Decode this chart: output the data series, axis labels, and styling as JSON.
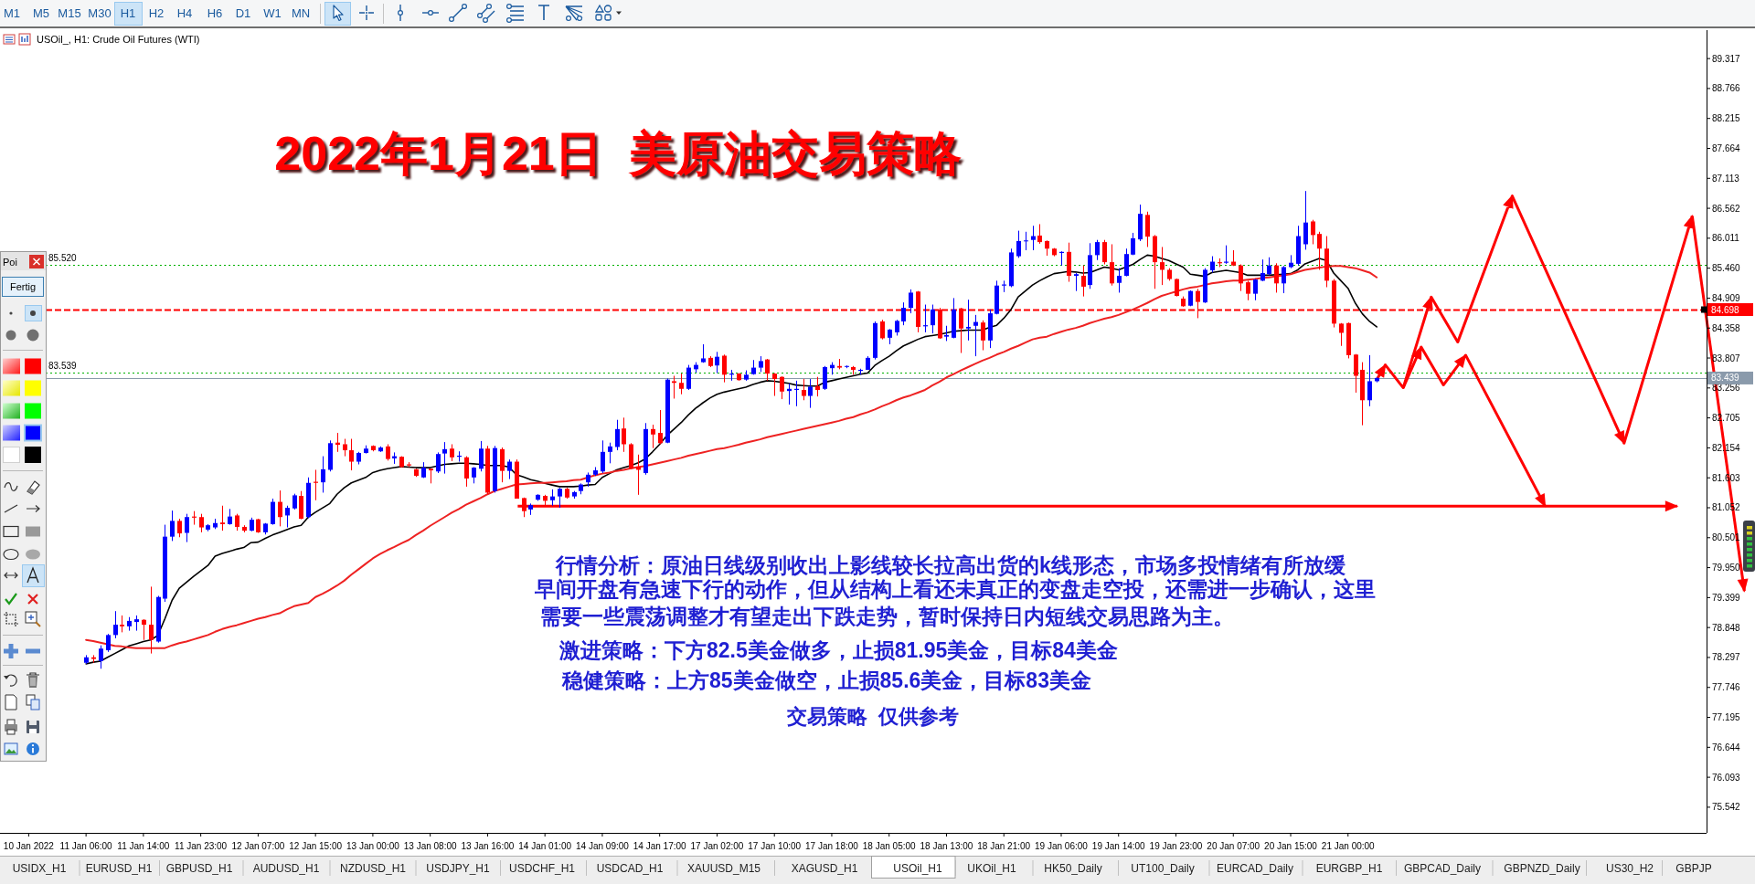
{
  "chart_data": [
    {
      "type": "candlestick",
      "title": "2022年1月21日  美原油交易策略",
      "subtitle": "USOil_, H1: Crude Oil Futures (WTI)",
      "ylim": [
        75.07,
        89.84
      ],
      "yticks": [
        89.317,
        88.766,
        88.215,
        87.664,
        87.113,
        86.562,
        86.011,
        {
          "value": 85.46,
          "label": "85.460"
        },
        84.909,
        84.358,
        83.807,
        83.256,
        82.705,
        82.154,
        81.603,
        81.052,
        80.501,
        {
          "value": 79.95,
          "label": "79.950"
        },
        79.399,
        78.848,
        78.297,
        77.746,
        77.195,
        76.644,
        76.093,
        75.542
      ],
      "categories": [
        "10 Jan 2022",
        null,
        null,
        null,
        null,
        null,
        null,
        null,
        "11 Jan 06:00",
        null,
        null,
        null,
        null,
        null,
        null,
        null,
        "11 Jan 14:00",
        null,
        null,
        null,
        null,
        null,
        null,
        null,
        "11 Jan 23:00",
        null,
        null,
        null,
        null,
        null,
        null,
        null,
        "12 Jan 07:00",
        null,
        null,
        null,
        null,
        null,
        null,
        null,
        "12 Jan 15:00",
        null,
        null,
        null,
        null,
        null,
        null,
        null,
        "13 Jan 00:00",
        null,
        null,
        null,
        null,
        null,
        null,
        null,
        "13 Jan 08:00",
        null,
        null,
        null,
        null,
        null,
        null,
        null,
        "13 Jan 16:00",
        null,
        null,
        null,
        null,
        null,
        null,
        null,
        "14 Jan 01:00",
        null,
        null,
        null,
        null,
        null,
        null,
        null,
        "14 Jan 09:00",
        null,
        null,
        null,
        null,
        null,
        null,
        null,
        "14 Jan 17:00",
        null,
        null,
        null,
        null,
        null,
        null,
        null,
        "17 Jan 02:00",
        null,
        null,
        null,
        null,
        null,
        null,
        null,
        "17 Jan 10:00",
        null,
        null,
        null,
        null,
        null,
        null,
        null,
        "17 Jan 18:00",
        null,
        null,
        null,
        null,
        null,
        null,
        null,
        "18 Jan 05:00",
        null,
        null,
        null,
        null,
        null,
        null,
        null,
        "18 Jan 13:00",
        null,
        null,
        null,
        null,
        null,
        null,
        null,
        "18 Jan 21:00",
        null,
        null,
        null,
        null,
        null,
        null,
        null,
        "19 Jan 06:00",
        null,
        null,
        null,
        null,
        null,
        null,
        null,
        "19 Jan 14:00",
        null,
        null,
        null,
        null,
        null,
        null,
        null,
        "19 Jan 23:00",
        null,
        null,
        null,
        null,
        null,
        null,
        null,
        "20 Jan 07:00",
        null,
        null,
        null,
        null,
        null,
        null,
        null,
        "20 Jan 15:00",
        null,
        null,
        null,
        null,
        null,
        null,
        null,
        "21 Jan 00:00",
        null,
        null,
        null,
        null,
        null,
        null,
        null,
        null,
        null,
        null,
        null,
        null,
        null,
        null,
        null,
        null,
        null,
        null,
        null,
        null,
        null,
        null,
        null,
        null,
        null,
        null,
        null,
        null,
        null,
        null,
        null,
        null,
        null,
        null,
        null,
        null,
        null,
        null,
        null,
        null,
        null,
        null,
        null,
        null,
        null,
        null,
        null,
        null,
        null
      ],
      "ohlc": [
        null,
        null,
        null,
        null,
        null,
        null,
        null,
        null,
        [
          78.2,
          78.34,
          78.18,
          78.3
        ],
        [
          78.3,
          78.34,
          78.2,
          78.27
        ],
        [
          78.23,
          78.52,
          78.09,
          78.46
        ],
        [
          78.43,
          78.73,
          78.4,
          78.71
        ],
        [
          78.71,
          79.15,
          78.65,
          78.9
        ],
        [
          78.9,
          79.07,
          78.76,
          78.87
        ],
        [
          78.87,
          79.04,
          78.79,
          78.97
        ],
        [
          78.95,
          79.07,
          78.79,
          79.0
        ],
        [
          78.99,
          79.0,
          78.62,
          78.9
        ],
        [
          78.9,
          79.6,
          78.37,
          78.62
        ],
        [
          78.59,
          79.43,
          78.57,
          79.41
        ],
        [
          79.38,
          80.74,
          79.32,
          80.52
        ],
        [
          80.52,
          81.0,
          80.44,
          80.81
        ],
        [
          80.81,
          80.85,
          80.51,
          80.58
        ],
        [
          80.59,
          80.94,
          80.42,
          80.88
        ],
        [
          80.89,
          80.99,
          80.74,
          80.87
        ],
        [
          80.88,
          80.94,
          80.6,
          80.69
        ],
        [
          80.65,
          80.75,
          80.62,
          80.73
        ],
        [
          80.69,
          80.85,
          80.66,
          80.77
        ],
        [
          80.78,
          81.09,
          80.63,
          80.75
        ],
        [
          80.75,
          81.03,
          80.74,
          80.89
        ],
        [
          80.91,
          80.94,
          80.63,
          80.7
        ],
        [
          80.7,
          80.73,
          80.6,
          80.63
        ],
        [
          80.63,
          80.87,
          80.62,
          80.83
        ],
        [
          80.84,
          80.85,
          80.59,
          80.6
        ],
        [
          80.6,
          80.77,
          80.56,
          80.76
        ],
        [
          80.75,
          81.22,
          80.74,
          81.16
        ],
        [
          81.16,
          81.37,
          80.71,
          80.88
        ],
        [
          80.91,
          81.09,
          80.69,
          81.05
        ],
        [
          81.04,
          81.31,
          81.02,
          81.28
        ],
        [
          81.27,
          81.36,
          80.84,
          80.85
        ],
        [
          80.88,
          81.61,
          80.86,
          81.51
        ],
        [
          81.53,
          81.75,
          81.19,
          81.51
        ],
        [
          81.52,
          82.0,
          81.33,
          81.76
        ],
        [
          81.75,
          82.29,
          81.72,
          82.24
        ],
        [
          82.25,
          82.43,
          82.08,
          82.21
        ],
        [
          82.22,
          82.32,
          82.0,
          82.11
        ],
        [
          82.11,
          82.32,
          81.74,
          81.9
        ],
        [
          81.9,
          82.08,
          81.85,
          82.06
        ],
        [
          82.06,
          82.2,
          82.05,
          82.14
        ],
        [
          82.19,
          82.2,
          82.09,
          82.11
        ],
        [
          82.09,
          82.18,
          82.08,
          82.16
        ],
        [
          82.18,
          82.22,
          81.92,
          81.95
        ],
        [
          81.96,
          82.07,
          81.86,
          82.0
        ],
        [
          81.99,
          82.0,
          81.79,
          81.8
        ],
        [
          81.85,
          81.89,
          81.8,
          81.83
        ],
        [
          81.76,
          81.77,
          81.62,
          81.64
        ],
        [
          81.61,
          81.89,
          81.6,
          81.79
        ],
        [
          81.77,
          81.77,
          81.5,
          81.74
        ],
        [
          81.72,
          82.07,
          81.69,
          82.04
        ],
        [
          82.05,
          82.26,
          81.68,
          82.13
        ],
        [
          82.14,
          82.22,
          81.91,
          81.98
        ],
        [
          81.99,
          82.09,
          81.9,
          82.01
        ],
        [
          81.98,
          82.0,
          81.44,
          81.59
        ],
        [
          81.61,
          81.8,
          81.5,
          81.79
        ],
        [
          81.77,
          82.28,
          81.72,
          82.14
        ],
        [
          82.14,
          82.19,
          81.3,
          81.33
        ],
        [
          81.36,
          82.19,
          81.33,
          82.15
        ],
        [
          82.13,
          82.16,
          81.52,
          81.73
        ],
        [
          81.73,
          81.94,
          81.58,
          81.9
        ],
        [
          81.9,
          81.94,
          81.22,
          81.22
        ],
        [
          81.23,
          81.24,
          80.88,
          80.99
        ],
        [
          81.02,
          81.13,
          80.92,
          81.1
        ],
        [
          81.2,
          81.3,
          81.18,
          81.29
        ],
        [
          81.27,
          81.29,
          81.1,
          81.18
        ],
        [
          81.19,
          81.39,
          81.09,
          81.26
        ],
        [
          81.26,
          81.42,
          81.05,
          81.4
        ],
        [
          81.4,
          81.42,
          81.22,
          81.24
        ],
        [
          81.26,
          81.36,
          81.22,
          81.34
        ],
        [
          81.36,
          81.5,
          81.3,
          81.48
        ],
        [
          81.52,
          81.7,
          81.44,
          81.66
        ],
        [
          81.66,
          81.8,
          81.64,
          81.74
        ],
        [
          81.72,
          82.29,
          81.69,
          82.08
        ],
        [
          82.08,
          82.25,
          81.87,
          82.18
        ],
        [
          82.17,
          82.67,
          82.11,
          82.5
        ],
        [
          82.51,
          82.71,
          82.08,
          82.22
        ],
        [
          82.22,
          82.24,
          81.76,
          81.77
        ],
        [
          81.81,
          82.03,
          81.29,
          81.75
        ],
        [
          81.69,
          82.61,
          81.66,
          82.5
        ],
        [
          82.5,
          82.58,
          82.15,
          82.4
        ],
        [
          82.43,
          82.85,
          82.22,
          82.24
        ],
        [
          82.25,
          83.43,
          82.24,
          83.41
        ],
        [
          83.38,
          83.48,
          83.06,
          83.35
        ],
        [
          83.35,
          83.52,
          83.14,
          83.24
        ],
        [
          83.24,
          83.68,
          83.22,
          83.63
        ],
        [
          83.6,
          83.73,
          83.54,
          83.68
        ],
        [
          83.73,
          84.06,
          83.72,
          83.8
        ],
        [
          83.81,
          83.84,
          83.64,
          83.66
        ],
        [
          83.67,
          83.92,
          83.53,
          83.83
        ],
        [
          83.85,
          83.87,
          83.36,
          83.5
        ],
        [
          83.5,
          83.59,
          83.39,
          83.52
        ],
        [
          83.52,
          83.53,
          83.39,
          83.4
        ],
        [
          83.41,
          83.58,
          83.39,
          83.5
        ],
        [
          83.51,
          83.77,
          83.5,
          83.63
        ],
        [
          83.63,
          83.84,
          83.55,
          83.75
        ],
        [
          83.78,
          83.79,
          83.39,
          83.52
        ],
        [
          83.52,
          83.53,
          83.11,
          83.42
        ],
        [
          83.46,
          83.47,
          83.05,
          83.19
        ],
        [
          83.2,
          83.34,
          82.95,
          83.24
        ],
        [
          83.22,
          83.39,
          82.92,
          83.24
        ],
        [
          83.22,
          83.42,
          83.03,
          83.11
        ],
        [
          83.11,
          83.42,
          82.89,
          83.28
        ],
        [
          83.29,
          83.46,
          83.1,
          83.22
        ],
        [
          83.24,
          83.66,
          83.22,
          83.64
        ],
        [
          83.62,
          83.73,
          83.5,
          83.68
        ],
        [
          83.66,
          83.79,
          83.6,
          83.63
        ],
        [
          83.65,
          83.67,
          83.62,
          83.66
        ],
        [
          83.64,
          83.66,
          83.5,
          83.59
        ],
        [
          83.57,
          83.61,
          83.5,
          83.59
        ],
        [
          83.59,
          83.84,
          83.59,
          83.81
        ],
        [
          83.81,
          84.48,
          83.78,
          84.45
        ],
        [
          84.48,
          84.51,
          84.15,
          84.17
        ],
        [
          84.18,
          84.34,
          84.06,
          84.33
        ],
        [
          84.28,
          84.51,
          84.22,
          84.49
        ],
        [
          84.48,
          84.83,
          84.41,
          84.73
        ],
        [
          84.73,
          85.07,
          84.63,
          85.01
        ],
        [
          85.03,
          85.04,
          84.28,
          84.38
        ],
        [
          84.39,
          84.79,
          84.28,
          84.41
        ],
        [
          84.41,
          84.79,
          84.26,
          84.7
        ],
        [
          84.7,
          84.73,
          84.16,
          84.17
        ],
        [
          84.2,
          84.4,
          84.12,
          84.23
        ],
        [
          84.18,
          84.91,
          84.17,
          84.7
        ],
        [
          84.72,
          84.73,
          83.9,
          84.35
        ],
        [
          84.35,
          84.88,
          84.13,
          84.38
        ],
        [
          84.4,
          84.6,
          83.84,
          84.47
        ],
        [
          84.46,
          84.5,
          83.95,
          84.13
        ],
        [
          84.13,
          84.7,
          83.99,
          84.63
        ],
        [
          84.62,
          85.23,
          84.61,
          85.14
        ],
        [
          85.14,
          85.23,
          85.02,
          85.16
        ],
        [
          85.13,
          85.82,
          85.11,
          85.75
        ],
        [
          85.68,
          86.15,
          85.65,
          85.96
        ],
        [
          85.96,
          86.13,
          85.79,
          85.97
        ],
        [
          85.98,
          86.24,
          85.79,
          86.05
        ],
        [
          86.06,
          86.27,
          85.91,
          85.94
        ],
        [
          85.96,
          85.97,
          85.69,
          85.82
        ],
        [
          85.82,
          85.83,
          85.68,
          85.7
        ],
        [
          85.74,
          85.77,
          85.51,
          85.76
        ],
        [
          85.76,
          85.93,
          85.21,
          85.32
        ],
        [
          85.32,
          85.37,
          85.04,
          85.35
        ],
        [
          85.32,
          85.51,
          84.94,
          85.12
        ],
        [
          85.15,
          85.92,
          85.08,
          85.7
        ],
        [
          85.7,
          85.98,
          85.61,
          85.94
        ],
        [
          85.94,
          85.98,
          85.53,
          85.57
        ],
        [
          85.57,
          85.9,
          85.14,
          85.18
        ],
        [
          85.19,
          85.46,
          85.01,
          85.32
        ],
        [
          85.32,
          85.82,
          85.31,
          85.72
        ],
        [
          85.71,
          86.11,
          85.7,
          86.01
        ],
        [
          85.99,
          86.63,
          85.96,
          86.46
        ],
        [
          86.44,
          86.5,
          85.85,
          86.04
        ],
        [
          86.05,
          86.07,
          85.08,
          85.57
        ],
        [
          85.57,
          85.85,
          85.15,
          85.43
        ],
        [
          85.43,
          85.46,
          85.23,
          85.26
        ],
        [
          85.26,
          85.27,
          84.94,
          84.95
        ],
        [
          84.9,
          84.94,
          84.75,
          84.76
        ],
        [
          84.77,
          85.05,
          84.76,
          85.04
        ],
        [
          85.04,
          85.08,
          84.54,
          84.84
        ],
        [
          84.83,
          85.46,
          84.82,
          85.43
        ],
        [
          85.42,
          85.68,
          85.38,
          85.58
        ],
        [
          85.57,
          85.64,
          85.48,
          85.55
        ],
        [
          85.56,
          85.88,
          85.54,
          85.58
        ],
        [
          85.58,
          85.79,
          85.5,
          85.51
        ],
        [
          85.51,
          85.53,
          85.04,
          85.18
        ],
        [
          85.2,
          85.23,
          84.87,
          84.99
        ],
        [
          84.99,
          85.26,
          84.87,
          85.25
        ],
        [
          85.23,
          85.62,
          85.22,
          85.37
        ],
        [
          85.35,
          85.66,
          85.33,
          85.51
        ],
        [
          85.51,
          85.55,
          85.01,
          85.18
        ],
        [
          85.18,
          85.5,
          85.0,
          85.48
        ],
        [
          85.48,
          85.7,
          85.46,
          85.56
        ],
        [
          85.54,
          86.24,
          85.51,
          86.05
        ],
        [
          85.9,
          86.88,
          85.8,
          86.3
        ],
        [
          86.32,
          86.35,
          85.9,
          86.07
        ],
        [
          86.09,
          86.13,
          85.43,
          85.82
        ],
        [
          85.82,
          86.05,
          85.11,
          85.23
        ],
        [
          85.23,
          85.26,
          84.37,
          84.44
        ],
        [
          84.44,
          84.45,
          84.03,
          84.27
        ],
        [
          84.45,
          84.46,
          83.8,
          83.86
        ],
        [
          83.87,
          83.88,
          83.17,
          83.48
        ],
        [
          83.59,
          83.73,
          82.57,
          83.03
        ],
        [
          83.03,
          83.86,
          82.92,
          83.38
        ],
        [
          83.38,
          83.45,
          83.36,
          83.44
        ],
        null,
        null,
        null,
        null,
        null,
        null,
        null,
        null,
        null,
        null,
        null,
        null,
        null,
        null,
        null,
        null,
        null,
        null,
        null,
        null,
        null,
        null,
        null,
        null,
        null,
        null,
        null,
        null,
        null,
        null,
        null,
        null,
        null,
        null,
        null,
        null,
        null,
        null,
        null,
        null,
        null,
        null,
        null,
        null,
        null
      ],
      "colors": [
        null,
        null,
        null,
        null,
        null,
        null,
        null,
        null,
        "#0000ff",
        "#ff0000",
        "#0000ff",
        "#0000ff",
        "#0000ff",
        "#ff0000",
        "#0000ff",
        "#0000ff",
        "#ff0000",
        "#ff0000",
        "#0000ff",
        "#0000ff",
        "#0000ff",
        "#ff0000",
        "#0000ff",
        "#ff0000",
        "#ff0000",
        "#0000ff",
        "#0000ff",
        "#ff0000",
        "#0000ff",
        "#ff0000",
        "#ff0000",
        "#0000ff",
        "#ff0000",
        "#0000ff",
        "#0000ff",
        "#ff0000",
        "#0000ff",
        "#0000ff",
        "#ff0000",
        "#0000ff",
        "#ff0000",
        "#0000ff",
        "#0000ff",
        "#ff0000",
        "#ff0000",
        "#ff0000",
        "#0000ff",
        "#0000ff",
        "#ff0000",
        "#0000ff",
        "#ff0000",
        "#0000ff",
        "#ff0000",
        "#ff0000",
        "#ff0000",
        "#0000ff",
        "#ff0000",
        "#0000ff",
        "#0000ff",
        "#ff0000",
        "#0000ff",
        "#ff0000",
        "#0000ff",
        "#0000ff",
        "#ff0000",
        "#0000ff",
        "#ff0000",
        "#0000ff",
        "#ff0000",
        "#ff0000",
        "#0000ff",
        "#0000ff",
        "#ff0000",
        "#0000ff",
        "#0000ff",
        "#ff0000",
        "#0000ff",
        "#0000ff",
        "#0000ff",
        "#0000ff",
        "#0000ff",
        "#0000ff",
        "#0000ff",
        "#ff0000",
        "#ff0000",
        "#ff0000",
        "#0000ff",
        "#ff0000",
        "#ff0000",
        "#0000ff",
        "#ff0000",
        "#ff0000",
        "#0000ff",
        "#0000ff",
        "#0000ff",
        "#ff0000",
        "#0000ff",
        "#ff0000",
        "#0000ff",
        "#ff0000",
        "#0000ff",
        "#0000ff",
        "#0000ff",
        "#ff0000",
        "#ff0000",
        "#ff0000",
        "#0000ff",
        "#0000ff",
        "#ff0000",
        "#0000ff",
        "#ff0000",
        "#0000ff",
        "#0000ff",
        "#ff0000",
        "#0000ff",
        "#ff0000",
        "#0000ff",
        "#0000ff",
        "#0000ff",
        "#ff0000",
        "#0000ff",
        "#0000ff",
        "#0000ff",
        "#0000ff",
        "#ff0000",
        "#0000ff",
        "#0000ff",
        "#ff0000",
        "#0000ff",
        "#0000ff",
        "#ff0000",
        "#0000ff",
        "#0000ff",
        "#ff0000",
        "#0000ff",
        "#0000ff",
        "#0000ff",
        "#0000ff",
        "#0000ff",
        "#0000ff",
        "#0000ff",
        "#ff0000",
        "#ff0000",
        "#ff0000",
        "#0000ff",
        "#ff0000",
        "#0000ff",
        "#ff0000",
        "#0000ff",
        "#0000ff",
        "#ff0000",
        "#ff0000",
        "#0000ff",
        "#0000ff",
        "#0000ff",
        "#0000ff",
        "#ff0000",
        "#ff0000",
        "#ff0000",
        "#ff0000",
        "#ff0000",
        "#ff0000",
        "#0000ff",
        "#ff0000",
        "#0000ff",
        "#0000ff",
        "#ff0000",
        "#0000ff",
        "#ff0000",
        "#ff0000",
        "#ff0000",
        "#0000ff",
        "#0000ff",
        "#0000ff",
        "#ff0000",
        "#0000ff",
        "#0000ff",
        "#0000ff",
        "#0000ff",
        "#ff0000",
        "#ff0000",
        "#ff0000",
        "#ff0000",
        "#ff0000",
        "#ff0000",
        "#ff0000",
        "#ff0000",
        "#0000ff",
        "#0000ff",
        null,
        null,
        null,
        null,
        null,
        null,
        null,
        null,
        null,
        null,
        null,
        null,
        null,
        null,
        null,
        null,
        null,
        null,
        null,
        null,
        null,
        null,
        null,
        null,
        null,
        null,
        null,
        null,
        null,
        null,
        null,
        null,
        null,
        null,
        null,
        null,
        null,
        null,
        null,
        null,
        null,
        null,
        null,
        null,
        null
      ],
      "series": [
        {
          "type": "line",
          "color": "#000000",
          "values": [
            null,
            null,
            null,
            null,
            null,
            null,
            null,
            null,
            78.18,
            78.21,
            78.23,
            78.3,
            78.37,
            78.44,
            78.51,
            78.55,
            78.59,
            78.62,
            78.7,
            79.01,
            79.35,
            79.57,
            79.68,
            79.79,
            79.89,
            79.99,
            80.16,
            80.21,
            80.25,
            80.29,
            80.32,
            80.41,
            80.42,
            80.49,
            80.55,
            80.6,
            80.65,
            80.7,
            80.73,
            80.88,
            80.97,
            81.05,
            81.13,
            81.3,
            81.42,
            81.51,
            81.56,
            81.61,
            81.7,
            81.74,
            81.77,
            81.79,
            81.81,
            81.8,
            81.79,
            81.79,
            81.79,
            81.82,
            81.85,
            81.86,
            81.87,
            81.87,
            81.86,
            81.85,
            81.83,
            81.83,
            81.83,
            81.8,
            81.66,
            81.62,
            81.57,
            81.54,
            81.5,
            81.47,
            81.44,
            81.44,
            81.44,
            81.45,
            81.47,
            81.48,
            81.61,
            81.68,
            81.75,
            81.79,
            81.83,
            81.88,
            81.95,
            82.08,
            82.22,
            82.38,
            82.5,
            82.62,
            82.76,
            82.88,
            82.98,
            83.07,
            83.14,
            83.18,
            83.21,
            83.24,
            83.27,
            83.32,
            83.36,
            83.39,
            83.38,
            83.36,
            83.34,
            83.31,
            83.3,
            83.29,
            83.29,
            83.36,
            83.39,
            83.42,
            83.45,
            83.48,
            83.51,
            83.53,
            83.67,
            83.76,
            83.84,
            83.94,
            84.03,
            84.09,
            84.15,
            84.2,
            84.22,
            84.24,
            84.27,
            84.3,
            84.31,
            84.32,
            84.32,
            84.32,
            84.37,
            84.41,
            84.54,
            84.7,
            84.93,
            85.04,
            85.15,
            85.23,
            85.3,
            85.36,
            85.38,
            85.4,
            85.39,
            85.37,
            85.38,
            85.43,
            85.48,
            85.46,
            85.43,
            85.48,
            85.53,
            85.62,
            85.7,
            85.68,
            85.64,
            85.6,
            85.54,
            85.48,
            85.35,
            85.33,
            85.31,
            85.38,
            85.4,
            85.42,
            85.4,
            85.38,
            85.33,
            85.33,
            85.33,
            85.33,
            85.34,
            85.35,
            85.36,
            85.43,
            85.54,
            85.59,
            85.64,
            85.6,
            85.37,
            85.23,
            85.09,
            84.82,
            84.62,
            84.48,
            84.38,
            null,
            null,
            null,
            null,
            null,
            null,
            null,
            null,
            null,
            null,
            null,
            null,
            null,
            null,
            null,
            null,
            null,
            null,
            null,
            null,
            null,
            null,
            null,
            null,
            null,
            null,
            null,
            null,
            null,
            null,
            null,
            null,
            null,
            null,
            null,
            null,
            null,
            null,
            null,
            null,
            null,
            null,
            null,
            null,
            null
          ]
        },
        {
          "type": "line",
          "color": "#ee2222",
          "values": [
            null,
            null,
            null,
            null,
            null,
            null,
            null,
            null,
            78.62,
            78.6,
            78.57,
            78.54,
            78.51,
            78.5,
            78.48,
            78.47,
            78.47,
            78.47,
            78.47,
            78.47,
            78.52,
            78.56,
            78.59,
            78.63,
            78.67,
            78.71,
            78.77,
            78.82,
            78.86,
            78.89,
            78.93,
            78.97,
            79.01,
            79.04,
            79.08,
            79.11,
            79.18,
            79.24,
            79.27,
            79.3,
            79.41,
            79.47,
            79.54,
            79.62,
            79.71,
            79.82,
            79.92,
            80.02,
            80.12,
            80.2,
            80.27,
            80.33,
            80.4,
            80.46,
            80.55,
            80.63,
            80.72,
            80.8,
            80.88,
            80.96,
            81.03,
            81.11,
            81.17,
            81.23,
            81.3,
            81.36,
            81.4,
            81.44,
            81.48,
            81.49,
            81.5,
            81.51,
            81.51,
            81.52,
            81.53,
            81.54,
            81.56,
            81.57,
            81.61,
            81.65,
            81.68,
            81.7,
            81.73,
            81.75,
            81.78,
            81.8,
            81.82,
            81.85,
            81.88,
            81.91,
            81.94,
            81.97,
            82.01,
            82.04,
            82.07,
            82.1,
            82.13,
            82.15,
            82.18,
            82.21,
            82.25,
            82.28,
            82.31,
            82.35,
            82.38,
            82.41,
            82.44,
            82.47,
            82.5,
            82.53,
            82.56,
            82.59,
            82.62,
            82.65,
            82.69,
            82.72,
            82.77,
            82.81,
            82.86,
            82.92,
            82.97,
            83.03,
            83.08,
            83.12,
            83.17,
            83.22,
            83.3,
            83.37,
            83.45,
            83.51,
            83.58,
            83.64,
            83.7,
            83.76,
            83.81,
            83.87,
            83.92,
            83.98,
            84.03,
            84.09,
            84.15,
            84.18,
            84.2,
            84.25,
            84.29,
            84.33,
            84.36,
            84.4,
            84.45,
            84.49,
            84.53,
            84.56,
            84.6,
            84.65,
            84.7,
            84.76,
            84.82,
            84.89,
            84.95,
            84.99,
            85.03,
            85.07,
            85.1,
            85.12,
            85.15,
            85.18,
            85.2,
            85.22,
            85.23,
            85.23,
            85.25,
            85.26,
            85.28,
            85.29,
            85.31,
            85.33,
            85.35,
            85.39,
            85.43,
            85.45,
            85.47,
            85.49,
            85.5,
            85.5,
            85.48,
            85.46,
            85.42,
            85.38,
            85.29,
            null,
            null,
            null,
            null,
            null,
            null,
            null,
            null,
            null,
            null,
            null,
            null,
            null,
            null,
            null,
            null,
            null,
            null,
            null,
            null,
            null,
            null,
            null,
            null,
            null,
            null,
            null,
            null,
            null,
            null,
            null,
            null,
            null,
            null,
            null,
            null,
            null,
            null,
            null,
            null,
            null,
            null,
            null,
            null,
            null
          ]
        }
      ],
      "ref_lines": [
        {
          "axis": "y",
          "value": 85.52,
          "label": "85.520",
          "color": "#00b000",
          "line_style": "dotted"
        },
        {
          "axis": "y",
          "value": 83.539,
          "label": "83.539",
          "color": "#00b000",
          "line_style": "dotted"
        },
        {
          "axis": "y",
          "value": 84.698,
          "label": "84.698",
          "color": "#ff0000",
          "line_style": "dashed"
        },
        {
          "axis": "y",
          "value": 83.439,
          "label": "83.439",
          "color": "#8a9aab",
          "line_style": "solid"
        }
      ],
      "annotations": [
        "行情分析：原油日线级别收出上影线较长拉高出货的k线形态，市场多投情绪有所放缓",
        "早间开盘有急速下行的动作，但从结构上看还未真正的变盘走空投，还需进一步确认，这里",
        "需要一些震荡调整才有望走出下跌走势，暂时保持日内短线交易思路为主。",
        "激进策略：下方82.5美金做多，止损81.95美金，目标84美金",
        "稳健策略：上方85美金做空，止损85.6美金，目标83美金",
        "交易策略  仅供参考"
      ]
    },
    {
      "type": "other",
      "annotations": [
        "M1",
        "M5",
        "M15",
        "M30",
        "H1",
        "H2",
        "H4",
        "H6",
        "D1",
        "W1",
        "MN"
      ]
    },
    {
      "type": "other",
      "title": "Poi",
      "annotations": [
        "Fertig"
      ]
    },
    {
      "type": "other",
      "annotations": [
        "USIDX_H1",
        "EURUSD_H1",
        "GBPUSD_H1",
        "AUDUSD_H1",
        "NZDUSD_H1",
        "USDJPY_H1",
        "USDCHF_H1",
        "USDCAD_H1",
        "XAUUSD_M15",
        "XAGUSD_H1",
        "USOil_H1",
        "UKOil_H1",
        "HK50_Daily",
        "UT100_Daily",
        "EURCAD_Daily",
        "EURGBP_H1",
        "GBPCAD_Daily",
        "GBPNZD_Daily",
        "US30_H2",
        "GBPJP"
      ]
    }
  ]
}
